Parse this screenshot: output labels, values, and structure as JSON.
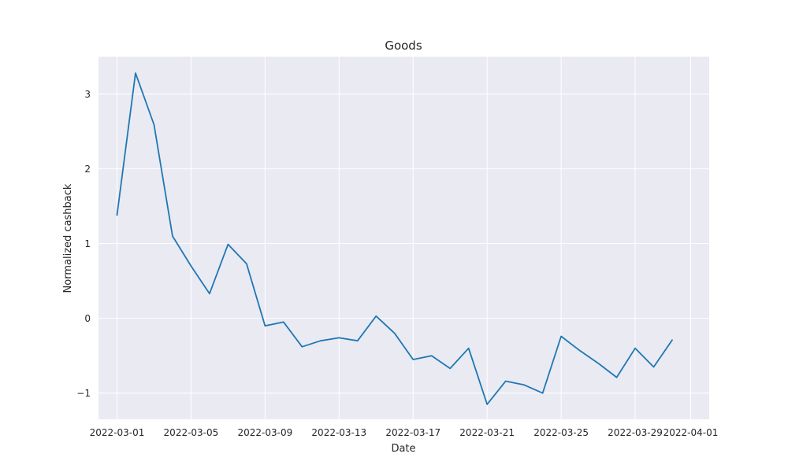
{
  "chart_data": {
    "type": "line",
    "title": "Goods",
    "xlabel": "Date",
    "ylabel": "Normalized cashback",
    "x_axis_type": "date",
    "xlim": [
      "2022-02-28",
      "2022-04-02"
    ],
    "ylim": [
      -1.35,
      3.5
    ],
    "grid": true,
    "background": "#eaeaf2",
    "grid_color": "#ffffff",
    "x_ticks": [
      "2022-03-01",
      "2022-03-05",
      "2022-03-09",
      "2022-03-13",
      "2022-03-17",
      "2022-03-21",
      "2022-03-25",
      "2022-03-29",
      "2022-04-01"
    ],
    "y_ticks": [
      {
        "value": -1,
        "label": "−1"
      },
      {
        "value": 0,
        "label": "0"
      },
      {
        "value": 1,
        "label": "1"
      },
      {
        "value": 2,
        "label": "2"
      },
      {
        "value": 3,
        "label": "3"
      }
    ],
    "series": [
      {
        "color": "#1f77b4",
        "x": [
          "2022-03-01",
          "2022-03-02",
          "2022-03-03",
          "2022-03-04",
          "2022-03-05",
          "2022-03-06",
          "2022-03-07",
          "2022-03-08",
          "2022-03-09",
          "2022-03-10",
          "2022-03-11",
          "2022-03-12",
          "2022-03-13",
          "2022-03-14",
          "2022-03-15",
          "2022-03-16",
          "2022-03-17",
          "2022-03-18",
          "2022-03-19",
          "2022-03-20",
          "2022-03-21",
          "2022-03-22",
          "2022-03-23",
          "2022-03-24",
          "2022-03-25",
          "2022-03-26",
          "2022-03-27",
          "2022-03-28",
          "2022-03-29",
          "2022-03-30",
          "2022-03-31"
        ],
        "y": [
          1.38,
          3.28,
          2.59,
          1.1,
          0.7,
          0.33,
          0.99,
          0.73,
          -0.1,
          -0.05,
          -0.38,
          -0.3,
          -0.26,
          -0.3,
          0.03,
          -0.2,
          -0.55,
          -0.5,
          -0.67,
          -0.4,
          -1.15,
          -0.84,
          -0.89,
          -1.0,
          -0.24,
          -0.43,
          -0.6,
          -0.79,
          -0.4,
          -0.65,
          -0.29
        ]
      }
    ]
  }
}
